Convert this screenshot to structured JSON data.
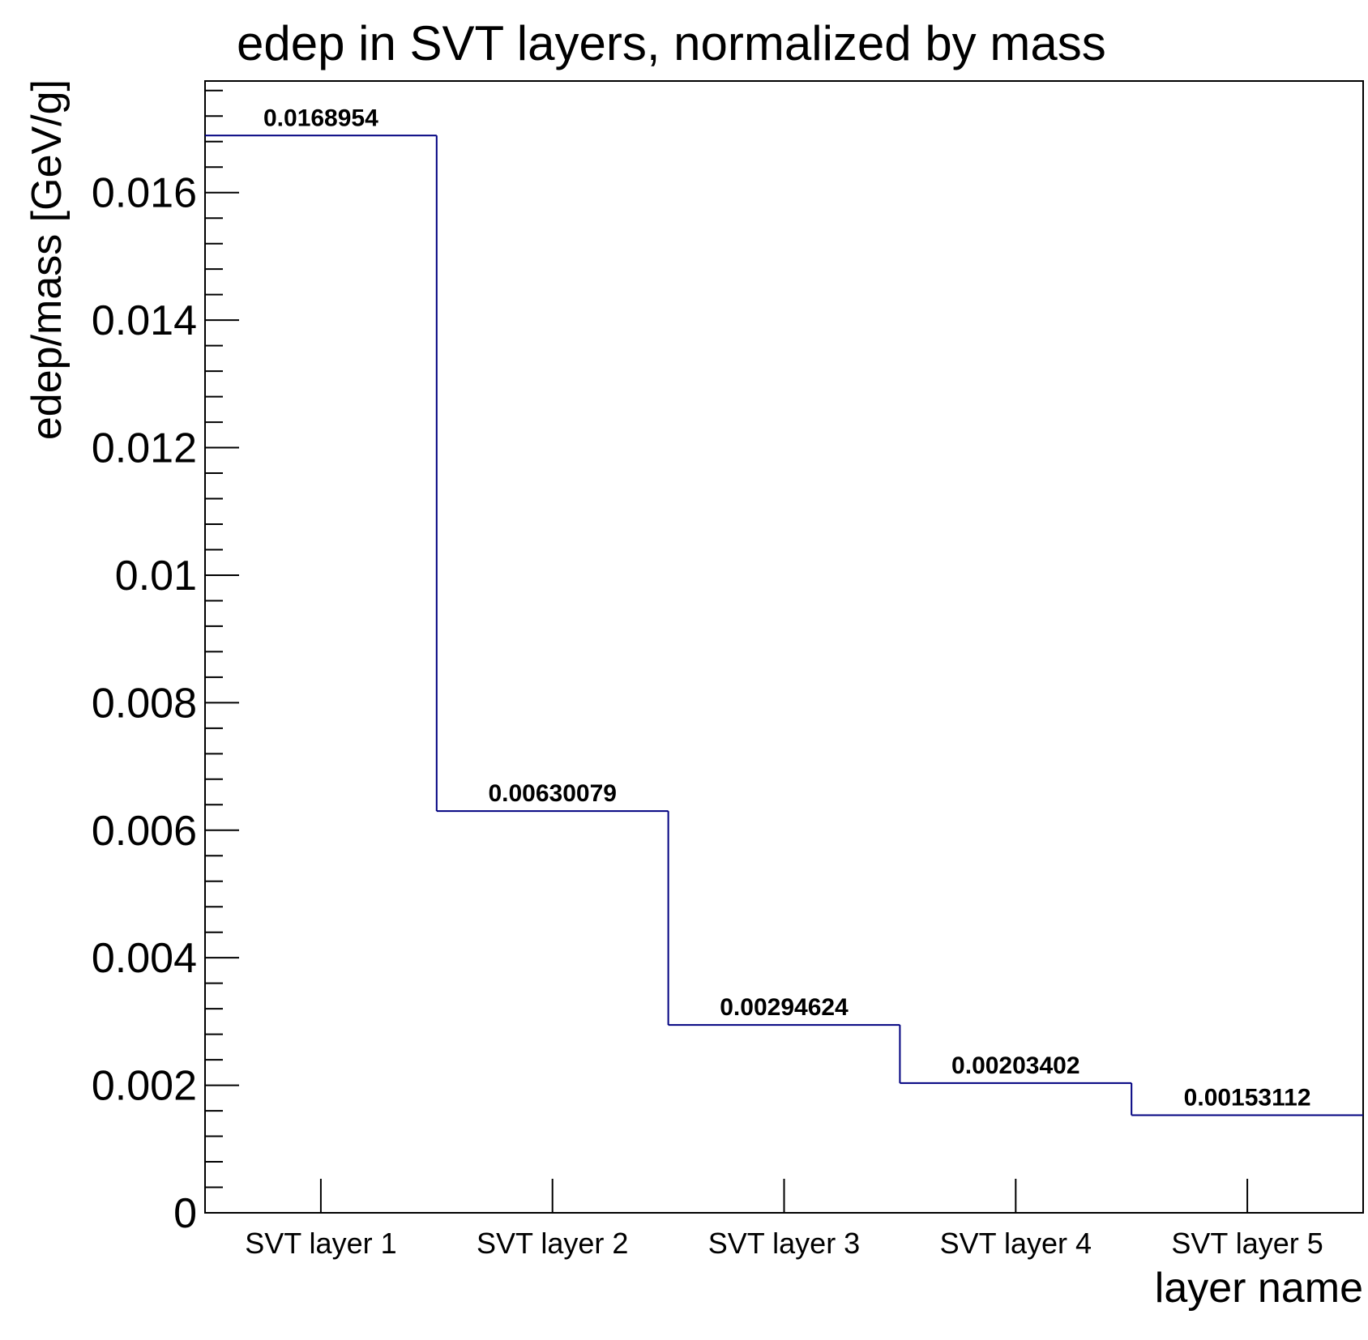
{
  "chart_data": {
    "type": "bar",
    "style": "step-histogram",
    "title": "edep in SVT layers, normalized by mass",
    "xlabel": "layer name",
    "ylabel": "edep/mass [GeV/g]",
    "categories": [
      "SVT layer 1",
      "SVT layer 2",
      "SVT layer 3",
      "SVT layer 4",
      "SVT layer 5"
    ],
    "values": [
      0.0168954,
      0.00630079,
      0.00294624,
      0.00203402,
      0.00153112
    ],
    "value_labels": [
      "0.0168954",
      "0.00630079",
      "0.00294624",
      "0.00203402",
      "0.00153112"
    ],
    "ylim": [
      0,
      0.01775
    ],
    "yticks": [
      0,
      0.002,
      0.004,
      0.006,
      0.008,
      0.01,
      0.012,
      0.014,
      0.016
    ],
    "ytick_labels": [
      "0",
      "0.002",
      "0.004",
      "0.006",
      "0.008",
      "0.01",
      "0.012",
      "0.014",
      "0.016"
    ],
    "y_minor_per_major": 4,
    "grid": false,
    "legend": "none",
    "line_color": "#000080"
  }
}
